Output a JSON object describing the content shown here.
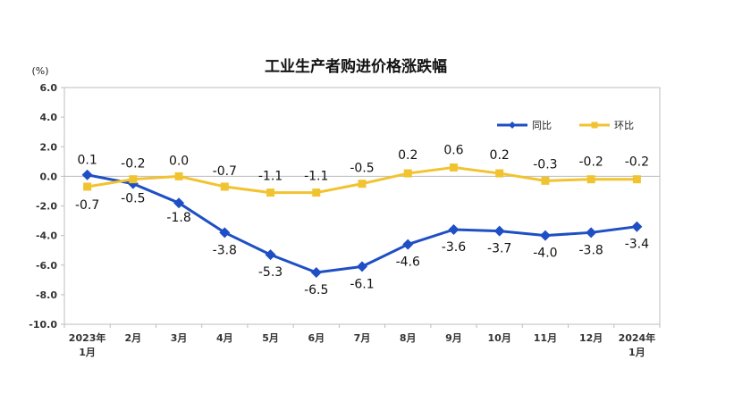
{
  "chart_data": {
    "type": "line",
    "title": "工业生产者购进价格涨跌幅",
    "unit_label": "(%)",
    "ylim": [
      -10.0,
      6.0
    ],
    "y_ticks": [
      "6.0",
      "4.0",
      "2.0",
      "0.0",
      "-2.0",
      "-4.0",
      "-6.0",
      "-8.0",
      "-10.0"
    ],
    "y_tick_values": [
      6,
      4,
      2,
      0,
      -2,
      -4,
      -6,
      -8,
      -10
    ],
    "categories": [
      [
        "2023年",
        "1月"
      ],
      [
        "2月"
      ],
      [
        "3月"
      ],
      [
        "4月"
      ],
      [
        "5月"
      ],
      [
        "6月"
      ],
      [
        "7月"
      ],
      [
        "8月"
      ],
      [
        "9月"
      ],
      [
        "10月"
      ],
      [
        "11月"
      ],
      [
        "12月"
      ],
      [
        "2024年",
        "1月"
      ]
    ],
    "grid": false,
    "legend_position": "top-right",
    "series": [
      {
        "name": "同比",
        "color": "#1f4fc4",
        "marker": "diamond",
        "values": [
          0.1,
          -0.5,
          -1.8,
          -3.8,
          -5.3,
          -6.5,
          -6.1,
          -4.6,
          -3.6,
          -3.7,
          -4.0,
          -3.8,
          -3.4
        ],
        "labels": [
          "0.1",
          "-0.5",
          "-1.8",
          "-3.8",
          "-5.3",
          "-6.5",
          "-6.1",
          "-4.6",
          "-3.6",
          "-3.7",
          "-4.0",
          "-3.8",
          "-3.4"
        ]
      },
      {
        "name": "环比",
        "color": "#f2c330",
        "marker": "square",
        "values": [
          -0.7,
          -0.2,
          0.0,
          -0.7,
          -1.1,
          -1.1,
          -0.5,
          0.2,
          0.6,
          0.2,
          -0.3,
          -0.2,
          -0.2
        ],
        "labels": [
          "-0.7",
          "-0.2",
          "0.0",
          "-0.7",
          "-1.1",
          "-1.1",
          "-0.5",
          "0.2",
          "0.6",
          "0.2",
          "-0.3",
          "-0.2",
          "-0.2"
        ]
      }
    ]
  }
}
